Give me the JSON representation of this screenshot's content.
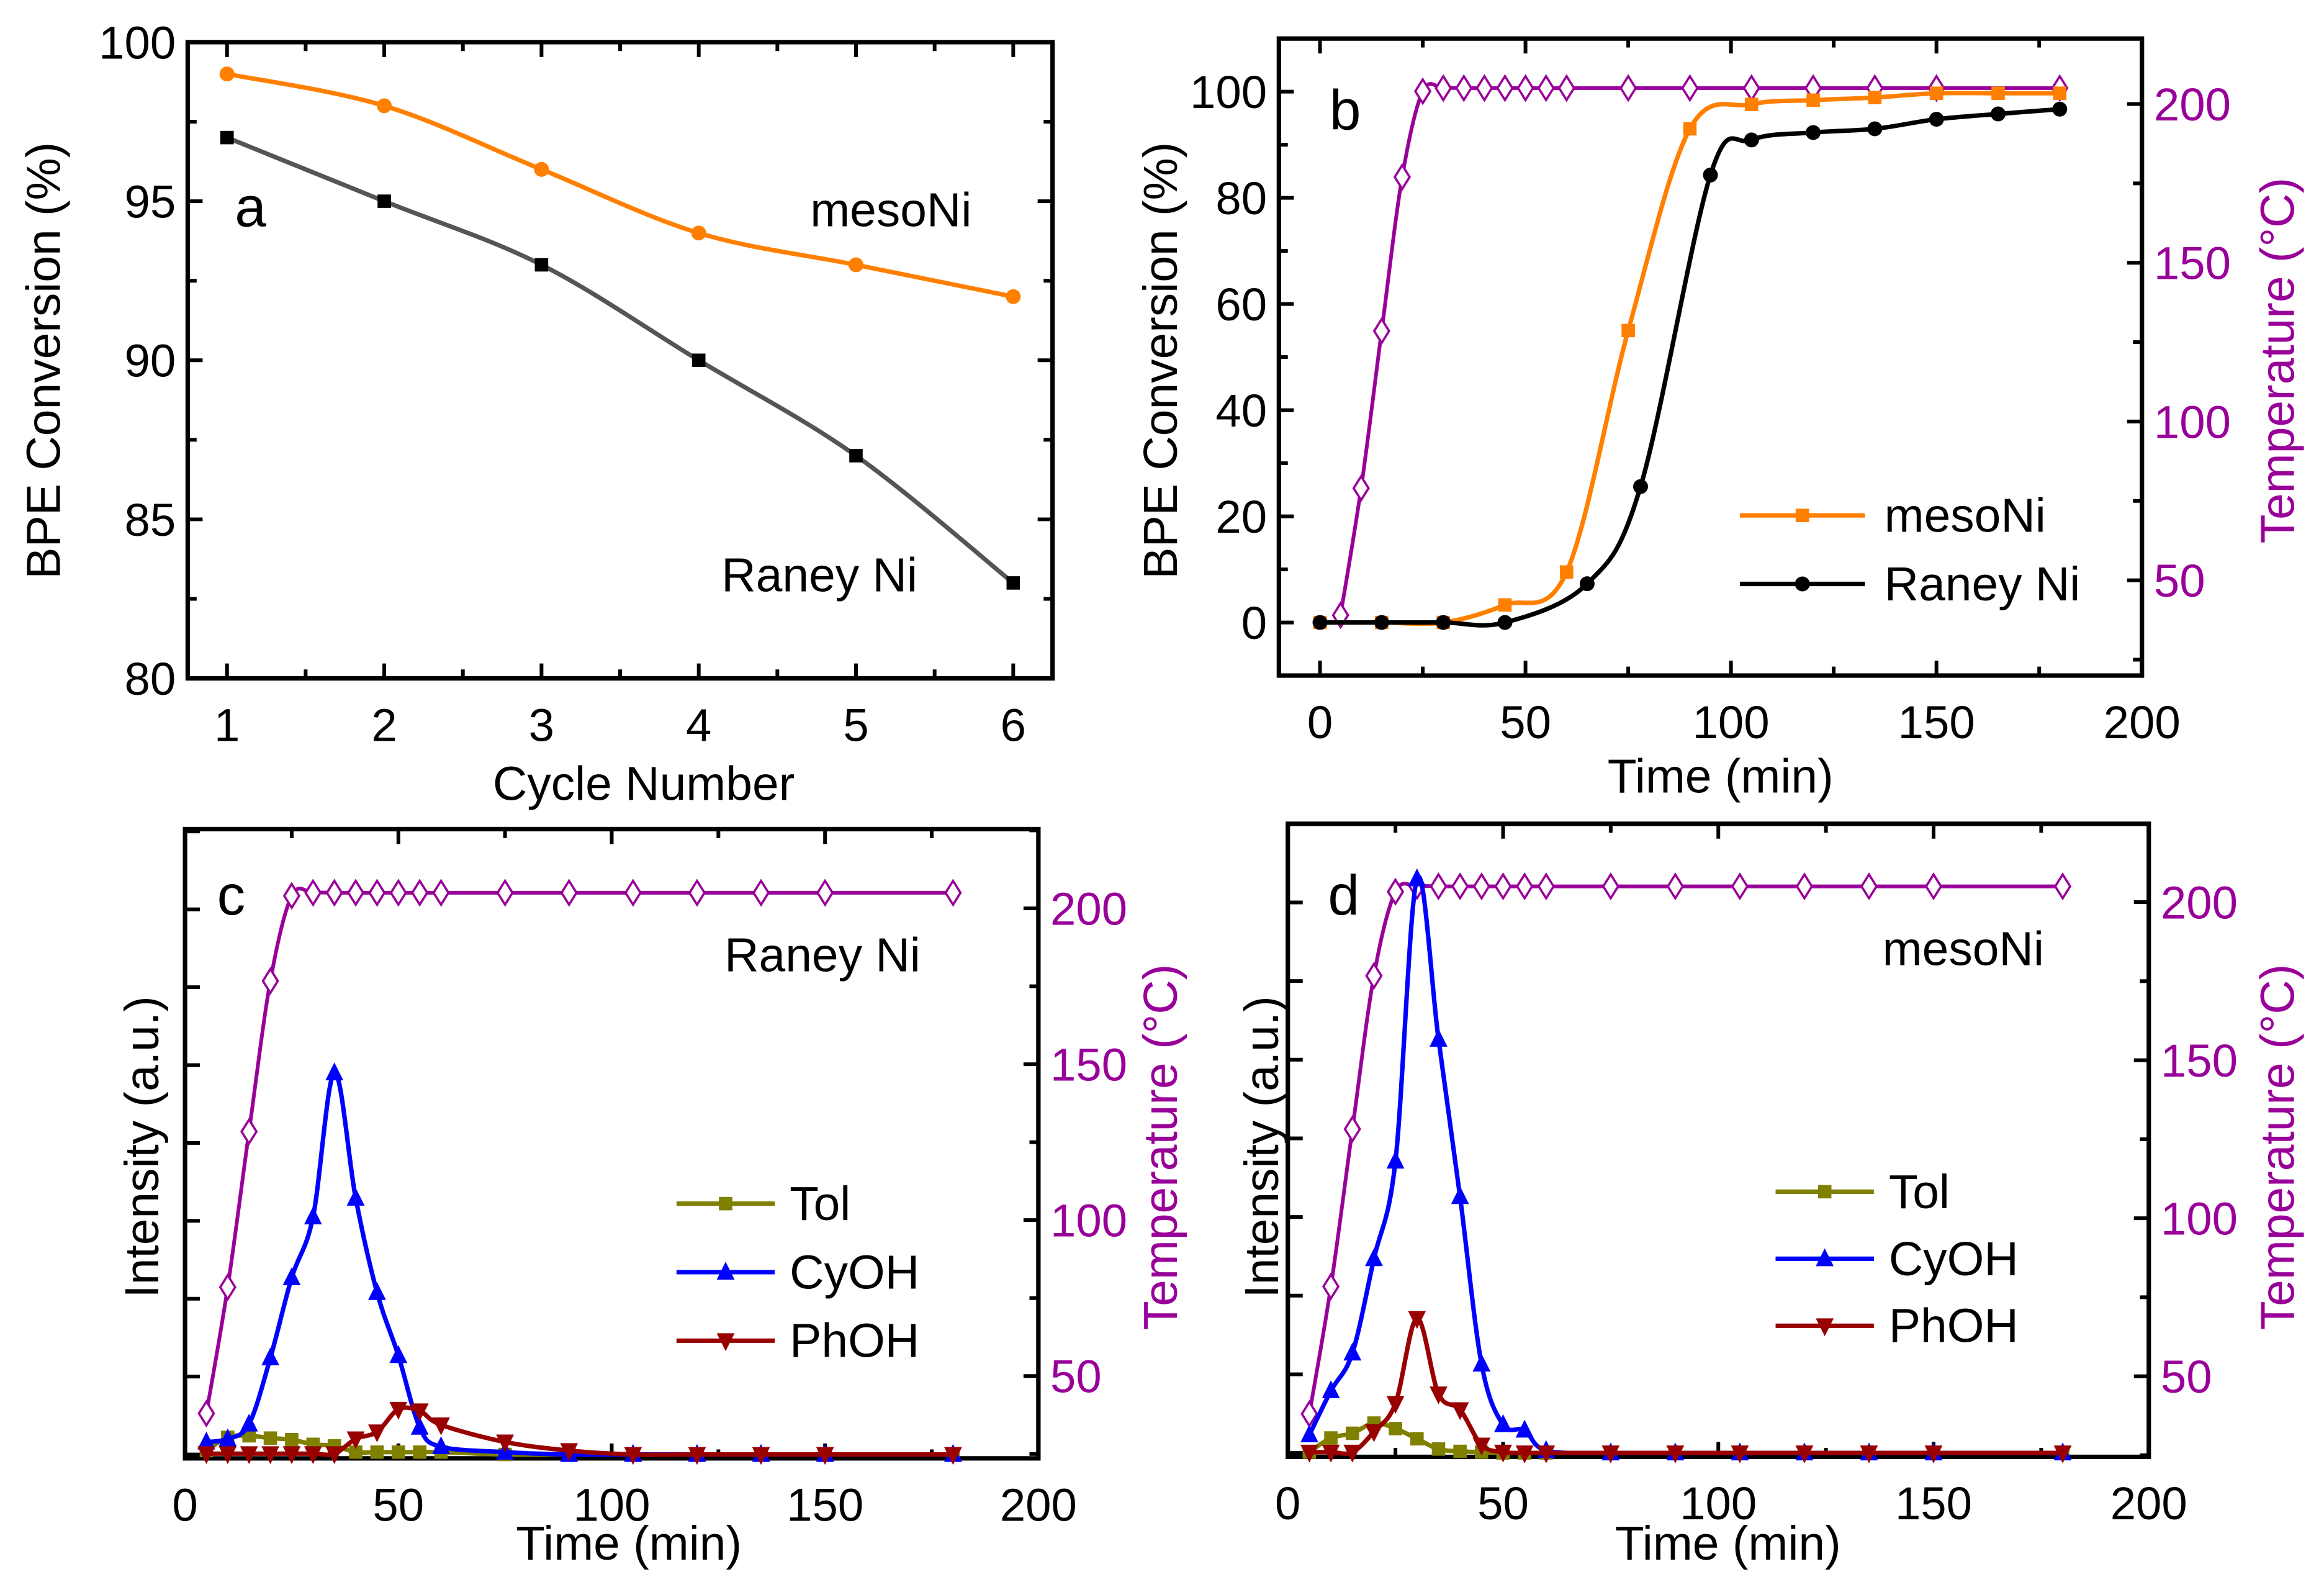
{
  "chart_data": [
    {
      "panel": "a",
      "type": "line",
      "xlabel": "Cycle Number",
      "ylabel": "BPE Conversion (%)",
      "xlim": [
        0.75,
        6.25
      ],
      "ylim": [
        80,
        100
      ],
      "xticks": [
        1,
        2,
        3,
        4,
        5,
        6
      ],
      "yticks": [
        80,
        85,
        90,
        95,
        100
      ],
      "grid": false,
      "annotations": [
        "mesoNi",
        "Raney Ni"
      ],
      "series": [
        {
          "name": "mesoNi",
          "x": [
            1,
            2,
            3,
            4,
            5,
            6
          ],
          "y": [
            99,
            98,
            96,
            94,
            93,
            92
          ],
          "color": "#FF8000",
          "marker": "circle",
          "axis": "left"
        },
        {
          "name": "Raney Ni",
          "x": [
            1,
            2,
            3,
            4,
            5,
            6
          ],
          "y": [
            97,
            95,
            93,
            90,
            87,
            83
          ],
          "color": "#000000",
          "line_color": "#555555",
          "marker": "square",
          "axis": "left"
        }
      ]
    },
    {
      "panel": "b",
      "type": "line",
      "xlabel": "Time (min)",
      "ylabel": "BPE Conversion (%)",
      "y2label": "Temperature (°C)",
      "xlim": [
        -10,
        200
      ],
      "ylim": [
        -10,
        110
      ],
      "y2lim": [
        20,
        220.6
      ],
      "xticks": [
        0,
        50,
        100,
        150,
        200
      ],
      "yticks": [
        0,
        20,
        40,
        60,
        80,
        100
      ],
      "y2ticks": [
        50,
        100,
        150,
        200
      ],
      "grid": false,
      "legend": "bottom-right",
      "series": [
        {
          "name": "mesoNi",
          "x": [
            0,
            15,
            30,
            45,
            60,
            75,
            90,
            105,
            120,
            135,
            150,
            165,
            180
          ],
          "y": [
            0,
            0,
            0,
            3.3,
            9.5,
            55,
            93,
            97.6,
            98.4,
            98.9,
            99.7,
            99.7,
            99.7
          ],
          "color": "#FF8000",
          "marker": "square",
          "axis": "left"
        },
        {
          "name": "Raney Ni",
          "x": [
            0,
            15,
            30,
            45,
            65,
            78,
            95,
            105,
            120,
            135,
            150,
            165,
            180
          ],
          "y": [
            0,
            0,
            0,
            0,
            7.3,
            25.6,
            84.3,
            90.9,
            92.3,
            93,
            94.8,
            95.8,
            96.7
          ],
          "color": "#000000",
          "marker": "circle",
          "axis": "left"
        },
        {
          "x": [
            5,
            10,
            15,
            20,
            25,
            30,
            35,
            40,
            45,
            50,
            55,
            60,
            75,
            90,
            105,
            120,
            135,
            150,
            180
          ],
          "y": [
            39,
            79,
            128.5,
            177,
            204,
            205,
            205,
            205,
            205,
            205,
            205,
            205,
            205,
            205,
            205,
            205,
            205,
            205,
            205
          ],
          "color": "#990099",
          "marker": "open-diamond",
          "axis": "right"
        }
      ]
    },
    {
      "panel": "c",
      "type": "line",
      "xlabel": "Time (min)",
      "ylabel": "Intensity (a.u.)",
      "y2label": "Temperature  (°C)",
      "xlim": [
        0,
        200
      ],
      "ylim": [
        -0.05,
        8.03
      ],
      "y2lim": [
        23.6,
        225.4
      ],
      "xticks": [
        0,
        50,
        100,
        150,
        200
      ],
      "y2ticks": [
        50,
        100,
        150,
        200
      ],
      "grid": false,
      "legend": "center-right",
      "annotations": [
        "Raney Ni"
      ],
      "series": [
        {
          "name": "Tol",
          "x": [
            5,
            10,
            15,
            20,
            25,
            30,
            35,
            40,
            45,
            50,
            55,
            60,
            75,
            90,
            105,
            120,
            135,
            150,
            180
          ],
          "y": [
            0.05,
            0.22,
            0.24,
            0.21,
            0.19,
            0.13,
            0.11,
            0.03,
            0.03,
            0.03,
            0.03,
            0.03,
            0,
            0,
            0,
            0,
            0,
            0,
            0
          ],
          "color": "#808000",
          "marker": "square",
          "axis": "left"
        },
        {
          "name": "CyOH",
          "x": [
            5,
            10,
            15,
            20,
            25,
            30,
            35,
            40,
            45,
            50,
            55,
            60,
            75,
            90,
            105,
            120,
            135,
            150,
            180
          ],
          "y": [
            0.16,
            0.2,
            0.39,
            1.24,
            2.27,
            3.05,
            4.9,
            3.29,
            2.08,
            1.27,
            0.35,
            0.1,
            0.03,
            0,
            0,
            0,
            0,
            0,
            0
          ],
          "color": "#0000FF",
          "marker": "triangle-up",
          "axis": "left"
        },
        {
          "name": "PhOH",
          "x": [
            5,
            10,
            15,
            20,
            25,
            30,
            35,
            40,
            45,
            50,
            55,
            60,
            75,
            90,
            105,
            120,
            135,
            150,
            180
          ],
          "y": [
            0.01,
            0.01,
            0.01,
            0.01,
            0.01,
            0.01,
            0.01,
            0.2,
            0.29,
            0.58,
            0.56,
            0.38,
            0.16,
            0.05,
            0,
            0,
            0,
            0,
            0
          ],
          "color": "#990000",
          "marker": "triangle-down",
          "axis": "left"
        },
        {
          "x": [
            5,
            10,
            15,
            20,
            25,
            30,
            35,
            40,
            45,
            50,
            55,
            60,
            75,
            90,
            105,
            120,
            135,
            150,
            180
          ],
          "y": [
            38,
            78.5,
            128.4,
            176.7,
            204,
            205,
            205,
            205,
            205,
            205,
            205,
            205,
            205,
            205,
            205,
            205,
            205,
            205,
            205
          ],
          "color": "#990099",
          "marker": "open-diamond",
          "axis": "right"
        }
      ]
    },
    {
      "panel": "d",
      "type": "line",
      "xlabel": "Time (min)",
      "ylabel": "Intensity (a.u.)",
      "y2label": "Temperature  (°C)",
      "xlim": [
        0,
        200
      ],
      "ylim": [
        -0.05,
        8.0
      ],
      "y2lim": [
        24.5,
        224.8
      ],
      "xticks": [
        0,
        50,
        100,
        150,
        200
      ],
      "y2ticks": [
        50,
        100,
        150,
        200
      ],
      "grid": false,
      "legend": "center-right",
      "annotations": [
        "mesoNi"
      ],
      "series": [
        {
          "name": "Tol",
          "x": [
            5,
            10,
            15,
            20,
            25,
            30,
            35,
            40,
            45,
            50,
            55,
            60,
            75,
            90,
            105,
            120,
            135,
            150,
            180
          ],
          "y": [
            0.01,
            0.19,
            0.25,
            0.38,
            0.31,
            0.18,
            0.05,
            0.02,
            0.01,
            0,
            0,
            0,
            0,
            0,
            0,
            0,
            0,
            0,
            0
          ],
          "color": "#808000",
          "marker": "square",
          "axis": "left"
        },
        {
          "name": "CyOH",
          "x": [
            5,
            10,
            15,
            20,
            25,
            30,
            35,
            40,
            45,
            50,
            55,
            60,
            75,
            90,
            105,
            120,
            135,
            150,
            180
          ],
          "y": [
            0.23,
            0.79,
            1.27,
            2.47,
            3.71,
            7.3,
            5.26,
            3.26,
            1.13,
            0.36,
            0.29,
            0.03,
            0,
            0,
            0,
            0,
            0,
            0,
            0
          ],
          "color": "#0000FF",
          "marker": "triangle-up",
          "axis": "left"
        },
        {
          "name": "PhOH",
          "x": [
            5,
            10,
            15,
            20,
            25,
            30,
            35,
            40,
            45,
            50,
            55,
            60,
            75,
            90,
            105,
            120,
            135,
            150,
            180
          ],
          "y": [
            0.01,
            0.01,
            0.01,
            0.27,
            0.63,
            1.71,
            0.75,
            0.55,
            0.1,
            0.01,
            0,
            0,
            0,
            0,
            0,
            0,
            0,
            0,
            0
          ],
          "color": "#990000",
          "marker": "triangle-down",
          "axis": "left"
        },
        {
          "x": [
            5,
            10,
            15,
            20,
            25,
            30,
            35,
            40,
            45,
            50,
            55,
            60,
            75,
            90,
            105,
            120,
            135,
            150,
            180
          ],
          "y": [
            38.1,
            78.4,
            128.2,
            176.7,
            203.3,
            205,
            205,
            205,
            205,
            205,
            205,
            205,
            205,
            205,
            205,
            205,
            205,
            205,
            205
          ],
          "color": "#990099",
          "marker": "open-diamond",
          "axis": "right"
        }
      ]
    }
  ]
}
